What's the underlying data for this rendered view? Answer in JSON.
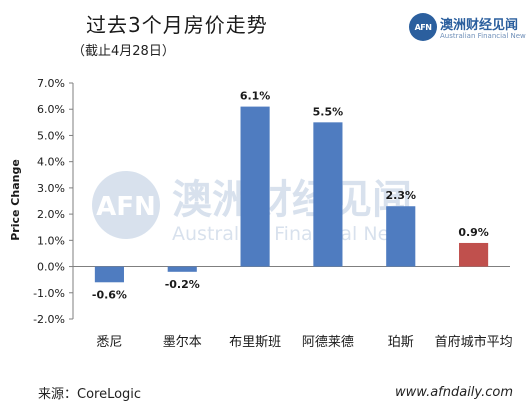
{
  "header": {
    "title": "过去3个月房价走势",
    "subtitle": "（截止4月28日）"
  },
  "logo": {
    "badge": "AFN",
    "name_cn": "澳洲财经见闻",
    "name_en": "Australian Financial News"
  },
  "watermark": {
    "badge": "AFN",
    "cn": "澳洲财经见闻",
    "en": "Australian Financial News"
  },
  "footer": {
    "source": "来源：CoreLogic",
    "site": "www.afndaily.com"
  },
  "chart_data": {
    "type": "bar",
    "categories": [
      "悉尼",
      "墨尔本",
      "布里斯班",
      "阿德莱德",
      "珀斯",
      "首府城市平均"
    ],
    "values": [
      -0.6,
      -0.2,
      6.1,
      5.5,
      2.3,
      0.9
    ],
    "data_labels": [
      "-0.6%",
      "-0.2%",
      "6.1%",
      "5.5%",
      "2.3%",
      "0.9%"
    ],
    "ylabel": "Price Change",
    "ylim": [
      -2.0,
      7.0
    ],
    "yticks": [
      "-2.0%",
      "-1.0%",
      "0.0%",
      "1.0%",
      "2.0%",
      "3.0%",
      "4.0%",
      "5.0%",
      "6.0%",
      "7.0%"
    ],
    "grid": false,
    "colors": {
      "bar": "#4f7cc0",
      "highlight": "#c0504d",
      "axis": "#7f7f7f"
    },
    "highlight_index": 5
  }
}
